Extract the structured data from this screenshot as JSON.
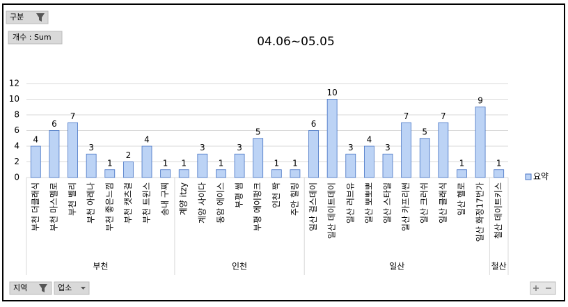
{
  "controls": {
    "filter": "구분",
    "measure": "개수 : Sum",
    "axis_fields": [
      "지역",
      "업소"
    ]
  },
  "chart_data": {
    "type": "bar",
    "title": "04.06~05.05",
    "series_name": "요약",
    "color": "#bcd3f5",
    "groups": [
      {
        "name": "부천",
        "categories": [
          "부천 더클래식",
          "부천 마스멜로",
          "부천 벨리",
          "부천 아레나",
          "부천 좋은느낌",
          "부천 캣츠걸",
          "부천 트윈스",
          "송내 구찌"
        ],
        "values": [
          4,
          6,
          7,
          3,
          1,
          2,
          4,
          1
        ]
      },
      {
        "name": "인천",
        "categories": [
          "계양 itzy",
          "계양 사이다",
          "동암 에이스",
          "부평 썸",
          "부평 에이펑크",
          "인천 짝",
          "주안 힐링"
        ],
        "values": [
          1,
          3,
          1,
          3,
          5,
          1,
          1
        ]
      },
      {
        "name": "일산",
        "categories": [
          "일산 걸스데이",
          "일산 데이트데이",
          "일산 러브유",
          "일산 뽀뽀뽀",
          "일산 스타일",
          "일산 카프리썬",
          "일산 크러쉬",
          "일산 클래식",
          "일산 헬로",
          "일산 화정17번가"
        ],
        "values": [
          6,
          10,
          3,
          4,
          3,
          7,
          5,
          7,
          1,
          9
        ]
      },
      {
        "name": "철산",
        "categories": [
          "철산 데이트키스"
        ],
        "values": [
          1
        ]
      }
    ],
    "ylim": [
      0,
      12
    ],
    "yticks": [
      0,
      2,
      4,
      6,
      8,
      10,
      12
    ],
    "grid": true
  }
}
